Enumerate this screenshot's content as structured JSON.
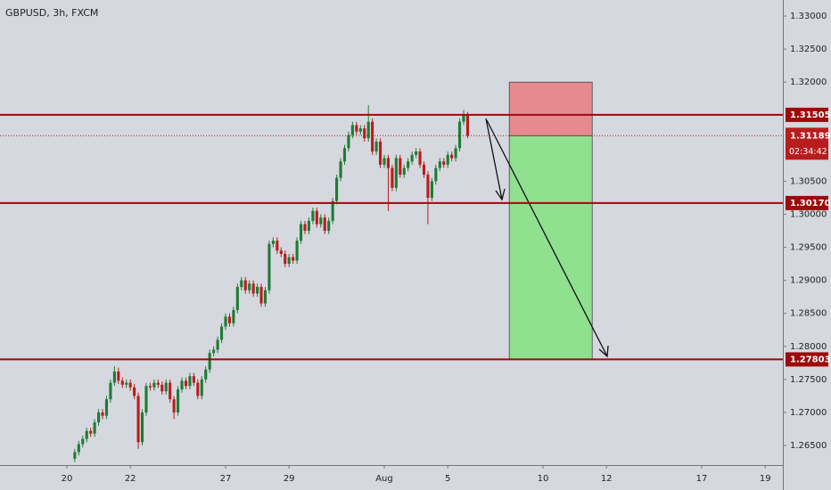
{
  "chart_data": {
    "type": "candlestick",
    "title": "GBPUSD, 3h, FXCM",
    "xlim": [
      -16.85,
      180.45
    ],
    "ylim": [
      1.26204,
      1.33243
    ],
    "xticks": [
      {
        "value": 0,
        "label": "20"
      },
      {
        "value": 16,
        "label": "22"
      },
      {
        "value": 40,
        "label": "27"
      },
      {
        "value": 56,
        "label": "29"
      },
      {
        "value": 80,
        "label": "Aug"
      },
      {
        "value": 96,
        "label": "5"
      },
      {
        "value": 120,
        "label": "10"
      },
      {
        "value": 136,
        "label": "12"
      },
      {
        "value": 160,
        "label": "17"
      },
      {
        "value": 176,
        "label": "19"
      }
    ],
    "yticks": [
      {
        "value": 1.33,
        "label": "1.33000"
      },
      {
        "value": 1.325,
        "label": "1.32500"
      },
      {
        "value": 1.32,
        "label": "1.32000"
      },
      {
        "value": 1.305,
        "label": "1.30500"
      },
      {
        "value": 1.3,
        "label": "1.30000"
      },
      {
        "value": 1.295,
        "label": "1.29500"
      },
      {
        "value": 1.29,
        "label": "1.29000"
      },
      {
        "value": 1.285,
        "label": "1.28500"
      },
      {
        "value": 1.28,
        "label": "1.28000"
      },
      {
        "value": 1.275,
        "label": "1.27500"
      },
      {
        "value": 1.27,
        "label": "1.27000"
      },
      {
        "value": 1.265,
        "label": "1.26500"
      }
    ],
    "up_color": "#1e7b34",
    "down_color": "#b81d1d",
    "x": [
      2,
      3,
      4,
      5,
      6,
      7,
      8,
      9,
      10,
      11,
      12,
      13,
      14,
      15,
      16,
      17,
      18,
      19,
      20,
      21,
      22,
      23,
      24,
      25,
      26,
      27,
      28,
      29,
      30,
      31,
      32,
      33,
      34,
      35,
      36,
      37,
      38,
      39,
      40,
      41,
      42,
      43,
      44,
      45,
      46,
      47,
      48,
      49,
      50,
      51,
      52,
      53,
      54,
      55,
      56,
      57,
      58,
      59,
      60,
      61,
      62,
      63,
      64,
      65,
      66,
      67,
      68,
      69,
      70,
      71,
      72,
      73,
      74,
      75,
      76,
      77,
      78,
      79,
      80,
      81,
      82,
      83,
      84,
      85,
      86,
      87,
      88,
      89,
      90,
      91,
      92,
      93,
      94,
      95,
      96,
      97,
      98,
      99,
      100,
      101
    ],
    "candles": [
      [
        1.263,
        1.2645,
        1.2625,
        1.264
      ],
      [
        1.264,
        1.2657,
        1.2635,
        1.2652
      ],
      [
        1.2652,
        1.2665,
        1.2647,
        1.266
      ],
      [
        1.266,
        1.2677,
        1.2655,
        1.2672
      ],
      [
        1.2672,
        1.2677,
        1.2663,
        1.2668
      ],
      [
        1.2668,
        1.269,
        1.2663,
        1.2685
      ],
      [
        1.2685,
        1.2705,
        1.268,
        1.27
      ],
      [
        1.27,
        1.2705,
        1.269,
        1.2695
      ],
      [
        1.2695,
        1.2725,
        1.269,
        1.272
      ],
      [
        1.272,
        1.275,
        1.2715,
        1.2745
      ],
      [
        1.2745,
        1.277,
        1.274,
        1.2762
      ],
      [
        1.2762,
        1.2768,
        1.2743,
        1.2748
      ],
      [
        1.2748,
        1.2753,
        1.2737,
        1.2742
      ],
      [
        1.2742,
        1.275,
        1.2737,
        1.2745
      ],
      [
        1.2745,
        1.275,
        1.2733,
        1.2738
      ],
      [
        1.2738,
        1.2743,
        1.272,
        1.2725
      ],
      [
        1.2725,
        1.273,
        1.2645,
        1.2655
      ],
      [
        1.2655,
        1.2705,
        1.265,
        1.27
      ],
      [
        1.27,
        1.2745,
        1.2695,
        1.274
      ],
      [
        1.274,
        1.2745,
        1.2733,
        1.2738
      ],
      [
        1.2738,
        1.275,
        1.2733,
        1.2745
      ],
      [
        1.2745,
        1.275,
        1.2737,
        1.2742
      ],
      [
        1.2742,
        1.2747,
        1.2727,
        1.2732
      ],
      [
        1.2732,
        1.275,
        1.2727,
        1.2745
      ],
      [
        1.2745,
        1.275,
        1.2715,
        1.272
      ],
      [
        1.272,
        1.2725,
        1.269,
        1.27
      ],
      [
        1.27,
        1.274,
        1.2695,
        1.2735
      ],
      [
        1.2735,
        1.2753,
        1.273,
        1.2748
      ],
      [
        1.2748,
        1.2753,
        1.2735,
        1.274
      ],
      [
        1.274,
        1.276,
        1.2735,
        1.2755
      ],
      [
        1.2755,
        1.276,
        1.274,
        1.2745
      ],
      [
        1.2745,
        1.275,
        1.272,
        1.2725
      ],
      [
        1.2725,
        1.2755,
        1.272,
        1.275
      ],
      [
        1.275,
        1.277,
        1.2745,
        1.2765
      ],
      [
        1.2765,
        1.2795,
        1.276,
        1.279
      ],
      [
        1.279,
        1.28,
        1.2785,
        1.2795
      ],
      [
        1.2795,
        1.2815,
        1.279,
        1.281
      ],
      [
        1.281,
        1.2835,
        1.2805,
        1.283
      ],
      [
        1.283,
        1.285,
        1.2825,
        1.2845
      ],
      [
        1.2845,
        1.285,
        1.283,
        1.2835
      ],
      [
        1.2835,
        1.286,
        1.283,
        1.2855
      ],
      [
        1.2855,
        1.2895,
        1.285,
        1.289
      ],
      [
        1.289,
        1.2905,
        1.2885,
        1.29
      ],
      [
        1.29,
        1.2905,
        1.288,
        1.2885
      ],
      [
        1.2885,
        1.29,
        1.288,
        1.2895
      ],
      [
        1.2895,
        1.29,
        1.2875,
        1.288
      ],
      [
        1.288,
        1.2895,
        1.2875,
        1.289
      ],
      [
        1.289,
        1.2895,
        1.286,
        1.2865
      ],
      [
        1.2865,
        1.289,
        1.286,
        1.2885
      ],
      [
        1.2885,
        1.296,
        1.288,
        1.2955
      ],
      [
        1.2955,
        1.2965,
        1.295,
        1.296
      ],
      [
        1.296,
        1.2965,
        1.294,
        1.2945
      ],
      [
        1.2945,
        1.295,
        1.2935,
        1.294
      ],
      [
        1.294,
        1.2945,
        1.292,
        1.2925
      ],
      [
        1.2925,
        1.294,
        1.292,
        1.2935
      ],
      [
        1.2935,
        1.294,
        1.2925,
        1.293
      ],
      [
        1.293,
        1.2965,
        1.2925,
        1.296
      ],
      [
        1.296,
        1.299,
        1.2955,
        1.2985
      ],
      [
        1.2985,
        1.299,
        1.297,
        1.2975
      ],
      [
        1.2975,
        1.2995,
        1.297,
        1.299
      ],
      [
        1.299,
        1.301,
        1.2985,
        1.3005
      ],
      [
        1.3005,
        1.301,
        1.298,
        1.2985
      ],
      [
        1.2985,
        1.3,
        1.298,
        1.2995
      ],
      [
        1.2995,
        1.3,
        1.297,
        1.2975
      ],
      [
        1.2975,
        1.2995,
        1.297,
        1.299
      ],
      [
        1.299,
        1.3025,
        1.2985,
        1.302
      ],
      [
        1.302,
        1.306,
        1.3015,
        1.3055
      ],
      [
        1.3055,
        1.3085,
        1.305,
        1.308
      ],
      [
        1.308,
        1.3105,
        1.3075,
        1.31
      ],
      [
        1.31,
        1.3125,
        1.3095,
        1.312
      ],
      [
        1.312,
        1.314,
        1.3115,
        1.3135
      ],
      [
        1.3135,
        1.314,
        1.312,
        1.3125
      ],
      [
        1.3125,
        1.3135,
        1.312,
        1.313
      ],
      [
        1.313,
        1.3135,
        1.311,
        1.3115
      ],
      [
        1.3115,
        1.3165,
        1.311,
        1.314
      ],
      [
        1.314,
        1.3145,
        1.309,
        1.3095
      ],
      [
        1.3095,
        1.3115,
        1.309,
        1.311
      ],
      [
        1.311,
        1.3115,
        1.307,
        1.3075
      ],
      [
        1.3075,
        1.309,
        1.307,
        1.3085
      ],
      [
        1.3085,
        1.309,
        1.3005,
        1.307
      ],
      [
        1.307,
        1.3075,
        1.3035,
        1.304
      ],
      [
        1.304,
        1.309,
        1.3035,
        1.3085
      ],
      [
        1.3085,
        1.309,
        1.3055,
        1.306
      ],
      [
        1.306,
        1.3075,
        1.3055,
        1.307
      ],
      [
        1.307,
        1.3085,
        1.3065,
        1.308
      ],
      [
        1.308,
        1.3095,
        1.3075,
        1.309
      ],
      [
        1.309,
        1.31,
        1.3085,
        1.3095
      ],
      [
        1.3095,
        1.31,
        1.307,
        1.3075
      ],
      [
        1.3075,
        1.308,
        1.3055,
        1.306
      ],
      [
        1.306,
        1.3065,
        1.2985,
        1.3025
      ],
      [
        1.3025,
        1.3055,
        1.302,
        1.305
      ],
      [
        1.305,
        1.3075,
        1.3045,
        1.307
      ],
      [
        1.307,
        1.3085,
        1.3065,
        1.308
      ],
      [
        1.308,
        1.3085,
        1.307,
        1.3075
      ],
      [
        1.3075,
        1.3095,
        1.307,
        1.309
      ],
      [
        1.309,
        1.3095,
        1.308,
        1.3085
      ],
      [
        1.3085,
        1.3105,
        1.308,
        1.31
      ],
      [
        1.31,
        1.3145,
        1.3095,
        1.314
      ],
      [
        1.314,
        1.3158,
        1.3135,
        1.315
      ],
      [
        1.315,
        1.3155,
        1.3115,
        1.3119
      ]
    ],
    "levels": [
      {
        "value": 1.31505,
        "label": "1.31505"
      },
      {
        "value": 1.3017,
        "label": "1.30170"
      },
      {
        "value": 1.27803,
        "label": "1.27803"
      }
    ],
    "level_color": "#9c0a0a",
    "last_price": {
      "value": 1.31189,
      "label": "1.31189"
    },
    "countdown": "02:34:42",
    "position": {
      "x": [
        111.5,
        132.4
      ],
      "entry": 1.31189,
      "stop": 1.32,
      "target": 1.27803,
      "stop_color": "#e58a8f",
      "target_color": "#8fe08f"
    }
  }
}
